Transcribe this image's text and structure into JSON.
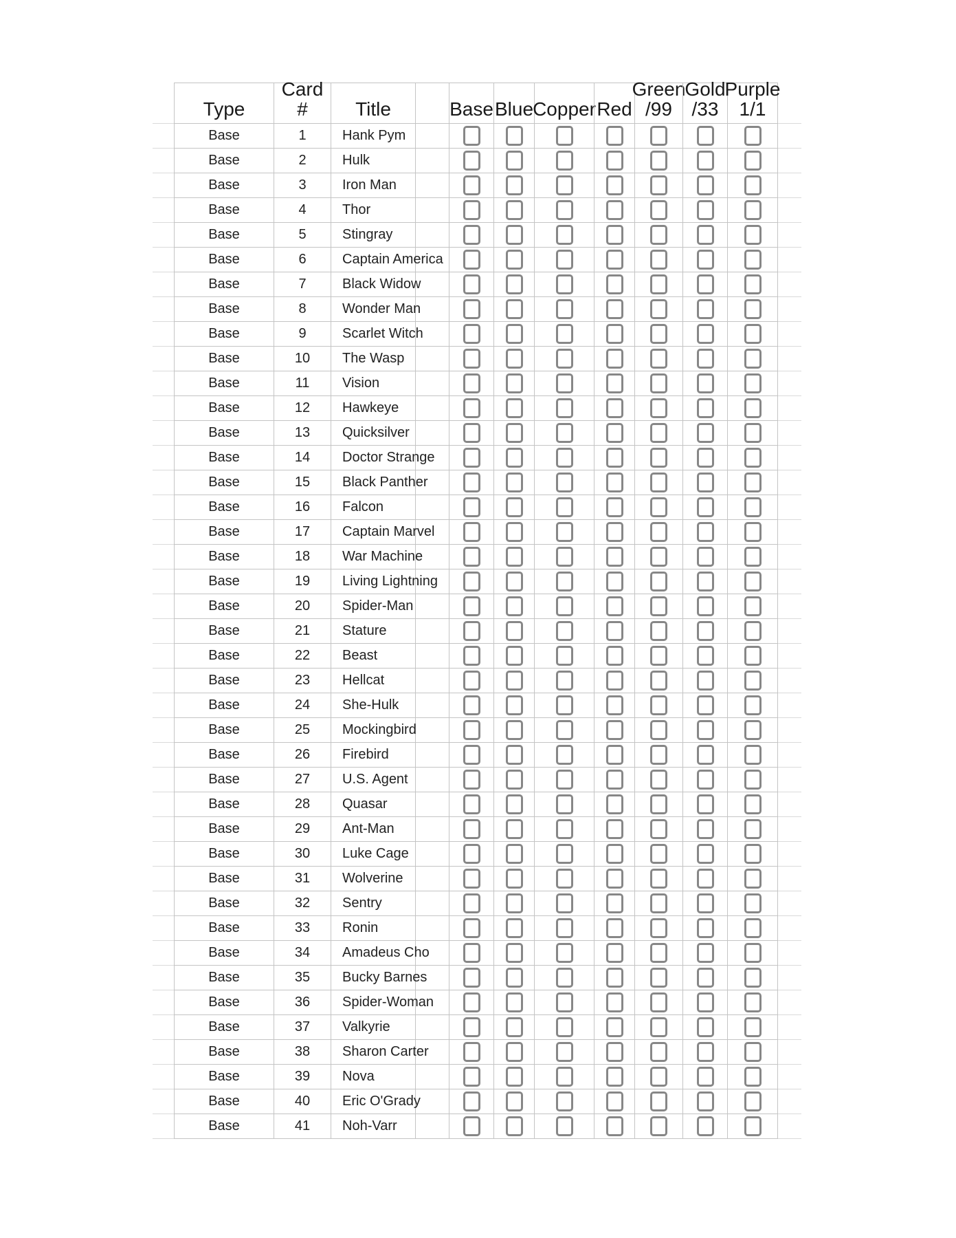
{
  "page": {
    "background_color": "#ffffff"
  },
  "table": {
    "grid_color": "#c4c4c4",
    "checkbox_border_color": "#878787",
    "all_checkboxes_unchecked": true,
    "columns": [
      {
        "key": "type",
        "label": "Type"
      },
      {
        "key": "card",
        "label": "Card #"
      },
      {
        "key": "title",
        "label": "Title"
      },
      {
        "key": "spacer",
        "label": ""
      },
      {
        "key": "base",
        "label": "Base",
        "checkbox": true
      },
      {
        "key": "blue",
        "label": "Blue",
        "checkbox": true
      },
      {
        "key": "copper",
        "label": "Copper",
        "checkbox": true
      },
      {
        "key": "red",
        "label": "Red",
        "checkbox": true
      },
      {
        "key": "green",
        "label": "Green",
        "label2": "/99",
        "checkbox": true
      },
      {
        "key": "gold",
        "label": "Gold",
        "label2": "/33",
        "checkbox": true
      },
      {
        "key": "purple",
        "label": "Purple",
        "label2": "1/1",
        "checkbox": true
      }
    ],
    "rows": [
      {
        "type": "Base",
        "card": "1",
        "title": "Hank Pym"
      },
      {
        "type": "Base",
        "card": "2",
        "title": "Hulk"
      },
      {
        "type": "Base",
        "card": "3",
        "title": "Iron Man"
      },
      {
        "type": "Base",
        "card": "4",
        "title": "Thor"
      },
      {
        "type": "Base",
        "card": "5",
        "title": "Stingray"
      },
      {
        "type": "Base",
        "card": "6",
        "title": "Captain America"
      },
      {
        "type": "Base",
        "card": "7",
        "title": "Black Widow"
      },
      {
        "type": "Base",
        "card": "8",
        "title": "Wonder Man"
      },
      {
        "type": "Base",
        "card": "9",
        "title": "Scarlet Witch"
      },
      {
        "type": "Base",
        "card": "10",
        "title": "The Wasp"
      },
      {
        "type": "Base",
        "card": "11",
        "title": "Vision"
      },
      {
        "type": "Base",
        "card": "12",
        "title": "Hawkeye"
      },
      {
        "type": "Base",
        "card": "13",
        "title": "Quicksilver"
      },
      {
        "type": "Base",
        "card": "14",
        "title": "Doctor Strange"
      },
      {
        "type": "Base",
        "card": "15",
        "title": "Black Panther"
      },
      {
        "type": "Base",
        "card": "16",
        "title": "Falcon"
      },
      {
        "type": "Base",
        "card": "17",
        "title": "Captain Marvel"
      },
      {
        "type": "Base",
        "card": "18",
        "title": "War Machine"
      },
      {
        "type": "Base",
        "card": "19",
        "title": "Living Lightning"
      },
      {
        "type": "Base",
        "card": "20",
        "title": "Spider-Man"
      },
      {
        "type": "Base",
        "card": "21",
        "title": "Stature"
      },
      {
        "type": "Base",
        "card": "22",
        "title": "Beast"
      },
      {
        "type": "Base",
        "card": "23",
        "title": "Hellcat"
      },
      {
        "type": "Base",
        "card": "24",
        "title": "She-Hulk"
      },
      {
        "type": "Base",
        "card": "25",
        "title": "Mockingbird"
      },
      {
        "type": "Base",
        "card": "26",
        "title": "Firebird"
      },
      {
        "type": "Base",
        "card": "27",
        "title": "U.S. Agent"
      },
      {
        "type": "Base",
        "card": "28",
        "title": "Quasar"
      },
      {
        "type": "Base",
        "card": "29",
        "title": "Ant-Man"
      },
      {
        "type": "Base",
        "card": "30",
        "title": "Luke Cage"
      },
      {
        "type": "Base",
        "card": "31",
        "title": "Wolverine"
      },
      {
        "type": "Base",
        "card": "32",
        "title": "Sentry"
      },
      {
        "type": "Base",
        "card": "33",
        "title": "Ronin"
      },
      {
        "type": "Base",
        "card": "34",
        "title": "Amadeus Cho"
      },
      {
        "type": "Base",
        "card": "35",
        "title": "Bucky Barnes"
      },
      {
        "type": "Base",
        "card": "36",
        "title": "Spider-Woman"
      },
      {
        "type": "Base",
        "card": "37",
        "title": "Valkyrie"
      },
      {
        "type": "Base",
        "card": "38",
        "title": "Sharon Carter"
      },
      {
        "type": "Base",
        "card": "39",
        "title": "Nova"
      },
      {
        "type": "Base",
        "card": "40",
        "title": "Eric O'Grady"
      },
      {
        "type": "Base",
        "card": "41",
        "title": "Noh-Varr"
      }
    ]
  }
}
